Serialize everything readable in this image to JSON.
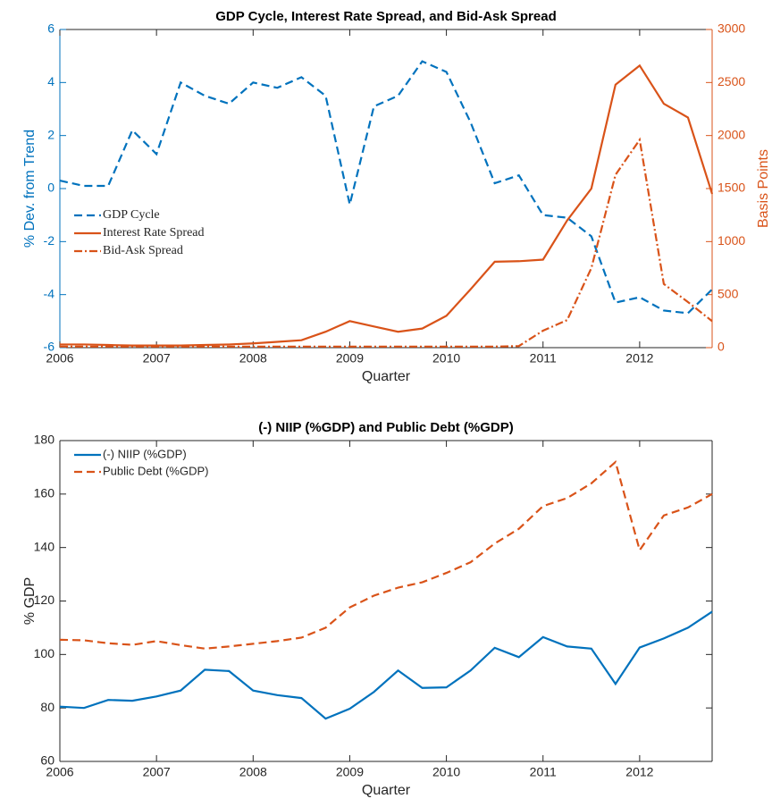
{
  "chart_data": [
    {
      "type": "line",
      "title": "GDP Cycle, Interest Rate Spread, and Bid-Ask Spread",
      "xlabel": "Quarter",
      "ylabel": "% Dev. from Trend",
      "y2label": "Basis Points",
      "x": [
        2006,
        2006.25,
        2006.5,
        2006.75,
        2007,
        2007.25,
        2007.5,
        2007.75,
        2008,
        2008.25,
        2008.5,
        2008.75,
        2009,
        2009.25,
        2009.5,
        2009.75,
        2010,
        2010.25,
        2010.5,
        2010.75,
        2011,
        2011.25,
        2011.5,
        2011.75,
        2012,
        2012.25,
        2012.5,
        2012.75
      ],
      "xlim": [
        2006,
        2012.75
      ],
      "xticks": [
        2006,
        2007,
        2008,
        2009,
        2010,
        2011,
        2012
      ],
      "ylim": [
        -6,
        6
      ],
      "yticks": [
        -6,
        -4,
        -2,
        0,
        2,
        4,
        6
      ],
      "y2lim": [
        0,
        3000
      ],
      "y2ticks": [
        0,
        500,
        1000,
        1500,
        2000,
        2500,
        3000
      ],
      "ycolor": "#0072BD",
      "y2color": "#D95319",
      "legend": "west",
      "series": [
        {
          "name": "GDP Cycle",
          "color": "#0072BD",
          "style": "dashed",
          "values": [
            0.3,
            0.1,
            0.1,
            2.2,
            1.3,
            4.0,
            3.5,
            3.2,
            4.0,
            3.8,
            4.2,
            3.5,
            -0.6,
            3.1,
            3.5,
            4.8,
            4.4,
            2.5,
            0.2,
            0.5,
            -1.0,
            -1.1,
            -1.8,
            -4.3,
            -4.1,
            -4.6,
            -4.7,
            -3.8
          ]
        },
        {
          "name": "Interest Rate Spread",
          "color": "#D95319",
          "style": "solid",
          "axis": "y2",
          "values": [
            30,
            30,
            25,
            20,
            20,
            20,
            25,
            30,
            40,
            55,
            70,
            150,
            250,
            200,
            150,
            180,
            300,
            550,
            810,
            815,
            830,
            1200,
            1500,
            2480,
            2660,
            2300,
            2170,
            1450
          ]
        },
        {
          "name": "Bid-Ask Spread",
          "color": "#D95319",
          "style": "dashdot",
          "axis": "y2",
          "values": [
            10,
            10,
            10,
            10,
            10,
            10,
            10,
            10,
            10,
            10,
            10,
            10,
            10,
            10,
            10,
            10,
            10,
            10,
            10,
            15,
            160,
            260,
            750,
            1630,
            1960,
            600,
            430,
            250
          ]
        }
      ]
    },
    {
      "type": "line",
      "title": "(-) NIIP (%GDP) and Public Debt (%GDP)",
      "xlabel": "Quarter",
      "ylabel": "% GDP",
      "x": [
        2006,
        2006.25,
        2006.5,
        2006.75,
        2007,
        2007.25,
        2007.5,
        2007.75,
        2008,
        2008.25,
        2008.5,
        2008.75,
        2009,
        2009.25,
        2009.5,
        2009.75,
        2010,
        2010.25,
        2010.5,
        2010.75,
        2011,
        2011.25,
        2011.5,
        2011.75,
        2012,
        2012.25,
        2012.5,
        2012.75
      ],
      "xlim": [
        2006,
        2012.75
      ],
      "xticks": [
        2006,
        2007,
        2008,
        2009,
        2010,
        2011,
        2012
      ],
      "ylim": [
        60,
        180
      ],
      "yticks": [
        60,
        80,
        100,
        120,
        140,
        160,
        180
      ],
      "legend": "northwest",
      "series": [
        {
          "name": "(-) NIIP (%GDP)",
          "color": "#0072BD",
          "style": "solid",
          "values": [
            80.5,
            80,
            83,
            82.7,
            84.3,
            86.5,
            94.3,
            93.8,
            86.5,
            84.8,
            83.7,
            76,
            79.7,
            86,
            94,
            87.5,
            87.7,
            94,
            102.5,
            99,
            106.5,
            103,
            102.2,
            89,
            102.6,
            106,
            110,
            116
          ]
        },
        {
          "name": "Public Debt (%GDP)",
          "color": "#D95319",
          "style": "dashed",
          "values": [
            105.5,
            105.3,
            104.2,
            103.6,
            105,
            103.5,
            102.2,
            103,
            104,
            105,
            106.3,
            110,
            117.6,
            122,
            125,
            127,
            130.5,
            134.5,
            141.5,
            147,
            155.5,
            158.5,
            164,
            172,
            139,
            152,
            155,
            160
          ]
        }
      ]
    }
  ]
}
